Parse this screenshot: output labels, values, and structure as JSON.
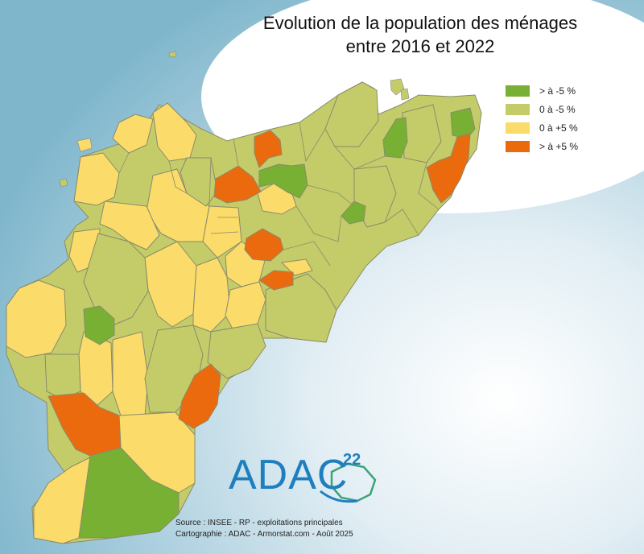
{
  "map": {
    "title_line1": "Evolution de la population des ménages",
    "title_line2": "entre 2016 et 2022"
  },
  "legend": {
    "items": [
      {
        "label": "> à -5 %",
        "color": "#78b034"
      },
      {
        "label": "0 à -5 %",
        "color": "#c4cc6a"
      },
      {
        "label": "0 à +5 %",
        "color": "#fbdc6a"
      },
      {
        "label": "> à +5 %",
        "color": "#ec6a0e"
      }
    ]
  },
  "logo": {
    "text": "ADAC",
    "superscript": "22",
    "color": "#1f7fbe"
  },
  "source": {
    "line1": "Source : INSEE - RP - exploitations principales",
    "line2": "Cartographie : ADAC - Armorstat.com - Août 2025"
  }
}
